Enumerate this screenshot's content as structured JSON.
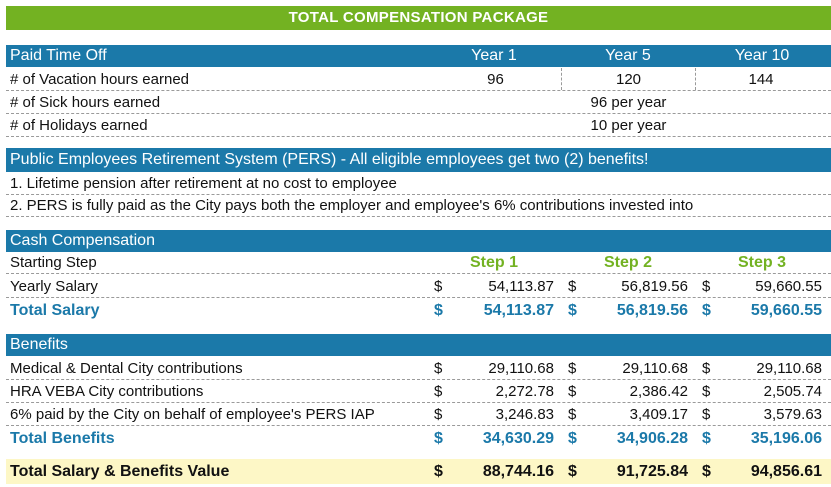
{
  "title": "TOTAL COMPENSATION PACKAGE",
  "pto": {
    "header": "Paid Time Off",
    "years": [
      "Year 1",
      "Year 5",
      "Year 10"
    ],
    "vacation_label": "# of Vacation hours earned",
    "vacation": [
      "96",
      "120",
      "144"
    ],
    "sick_label": "# of Sick hours earned",
    "sick_value": "96 per year",
    "holidays_label": "# of Holidays earned",
    "holidays_value": "10 per year"
  },
  "pers": {
    "header": "Public Employees Retirement System (PERS) - All eligible employees get two (2) benefits!",
    "item1": "1. Lifetime pension after retirement at no cost to employee",
    "item2": "2.  PERS is fully paid as the City pays both the employer and employee's 6% contributions invested into"
  },
  "cash": {
    "header": "Cash Compensation",
    "step_label": "Starting Step",
    "steps": [
      "Step 1",
      "Step 2",
      "Step 3"
    ],
    "salary_label": "Yearly Salary",
    "salary": [
      "54,113.87",
      "56,819.56",
      "59,660.55"
    ],
    "total_label": "Total Salary",
    "total": [
      "54,113.87",
      "56,819.56",
      "59,660.55"
    ]
  },
  "benefits": {
    "header": "Benefits",
    "medical_label": "Medical & Dental City contributions",
    "medical": [
      "29,110.68",
      "29,110.68",
      "29,110.68"
    ],
    "hra_label": "HRA VEBA City contributions",
    "hra": [
      "2,272.78",
      "2,386.42",
      "2,505.74"
    ],
    "pers_label": "6% paid by the City on behalf of employee's PERS IAP",
    "pers": [
      "3,246.83",
      "3,409.17",
      "3,579.63"
    ],
    "total_label": "Total Benefits",
    "total": [
      "34,630.29",
      "34,906.28",
      "35,196.06"
    ]
  },
  "grand": {
    "label": "Total Salary & Benefits Value",
    "values": [
      "88,744.16",
      "91,725.84",
      "94,856.61"
    ]
  },
  "currency": "$",
  "colors": {
    "green": "#73b222",
    "blue": "#1b79a9",
    "cream": "#fdf7c6"
  }
}
